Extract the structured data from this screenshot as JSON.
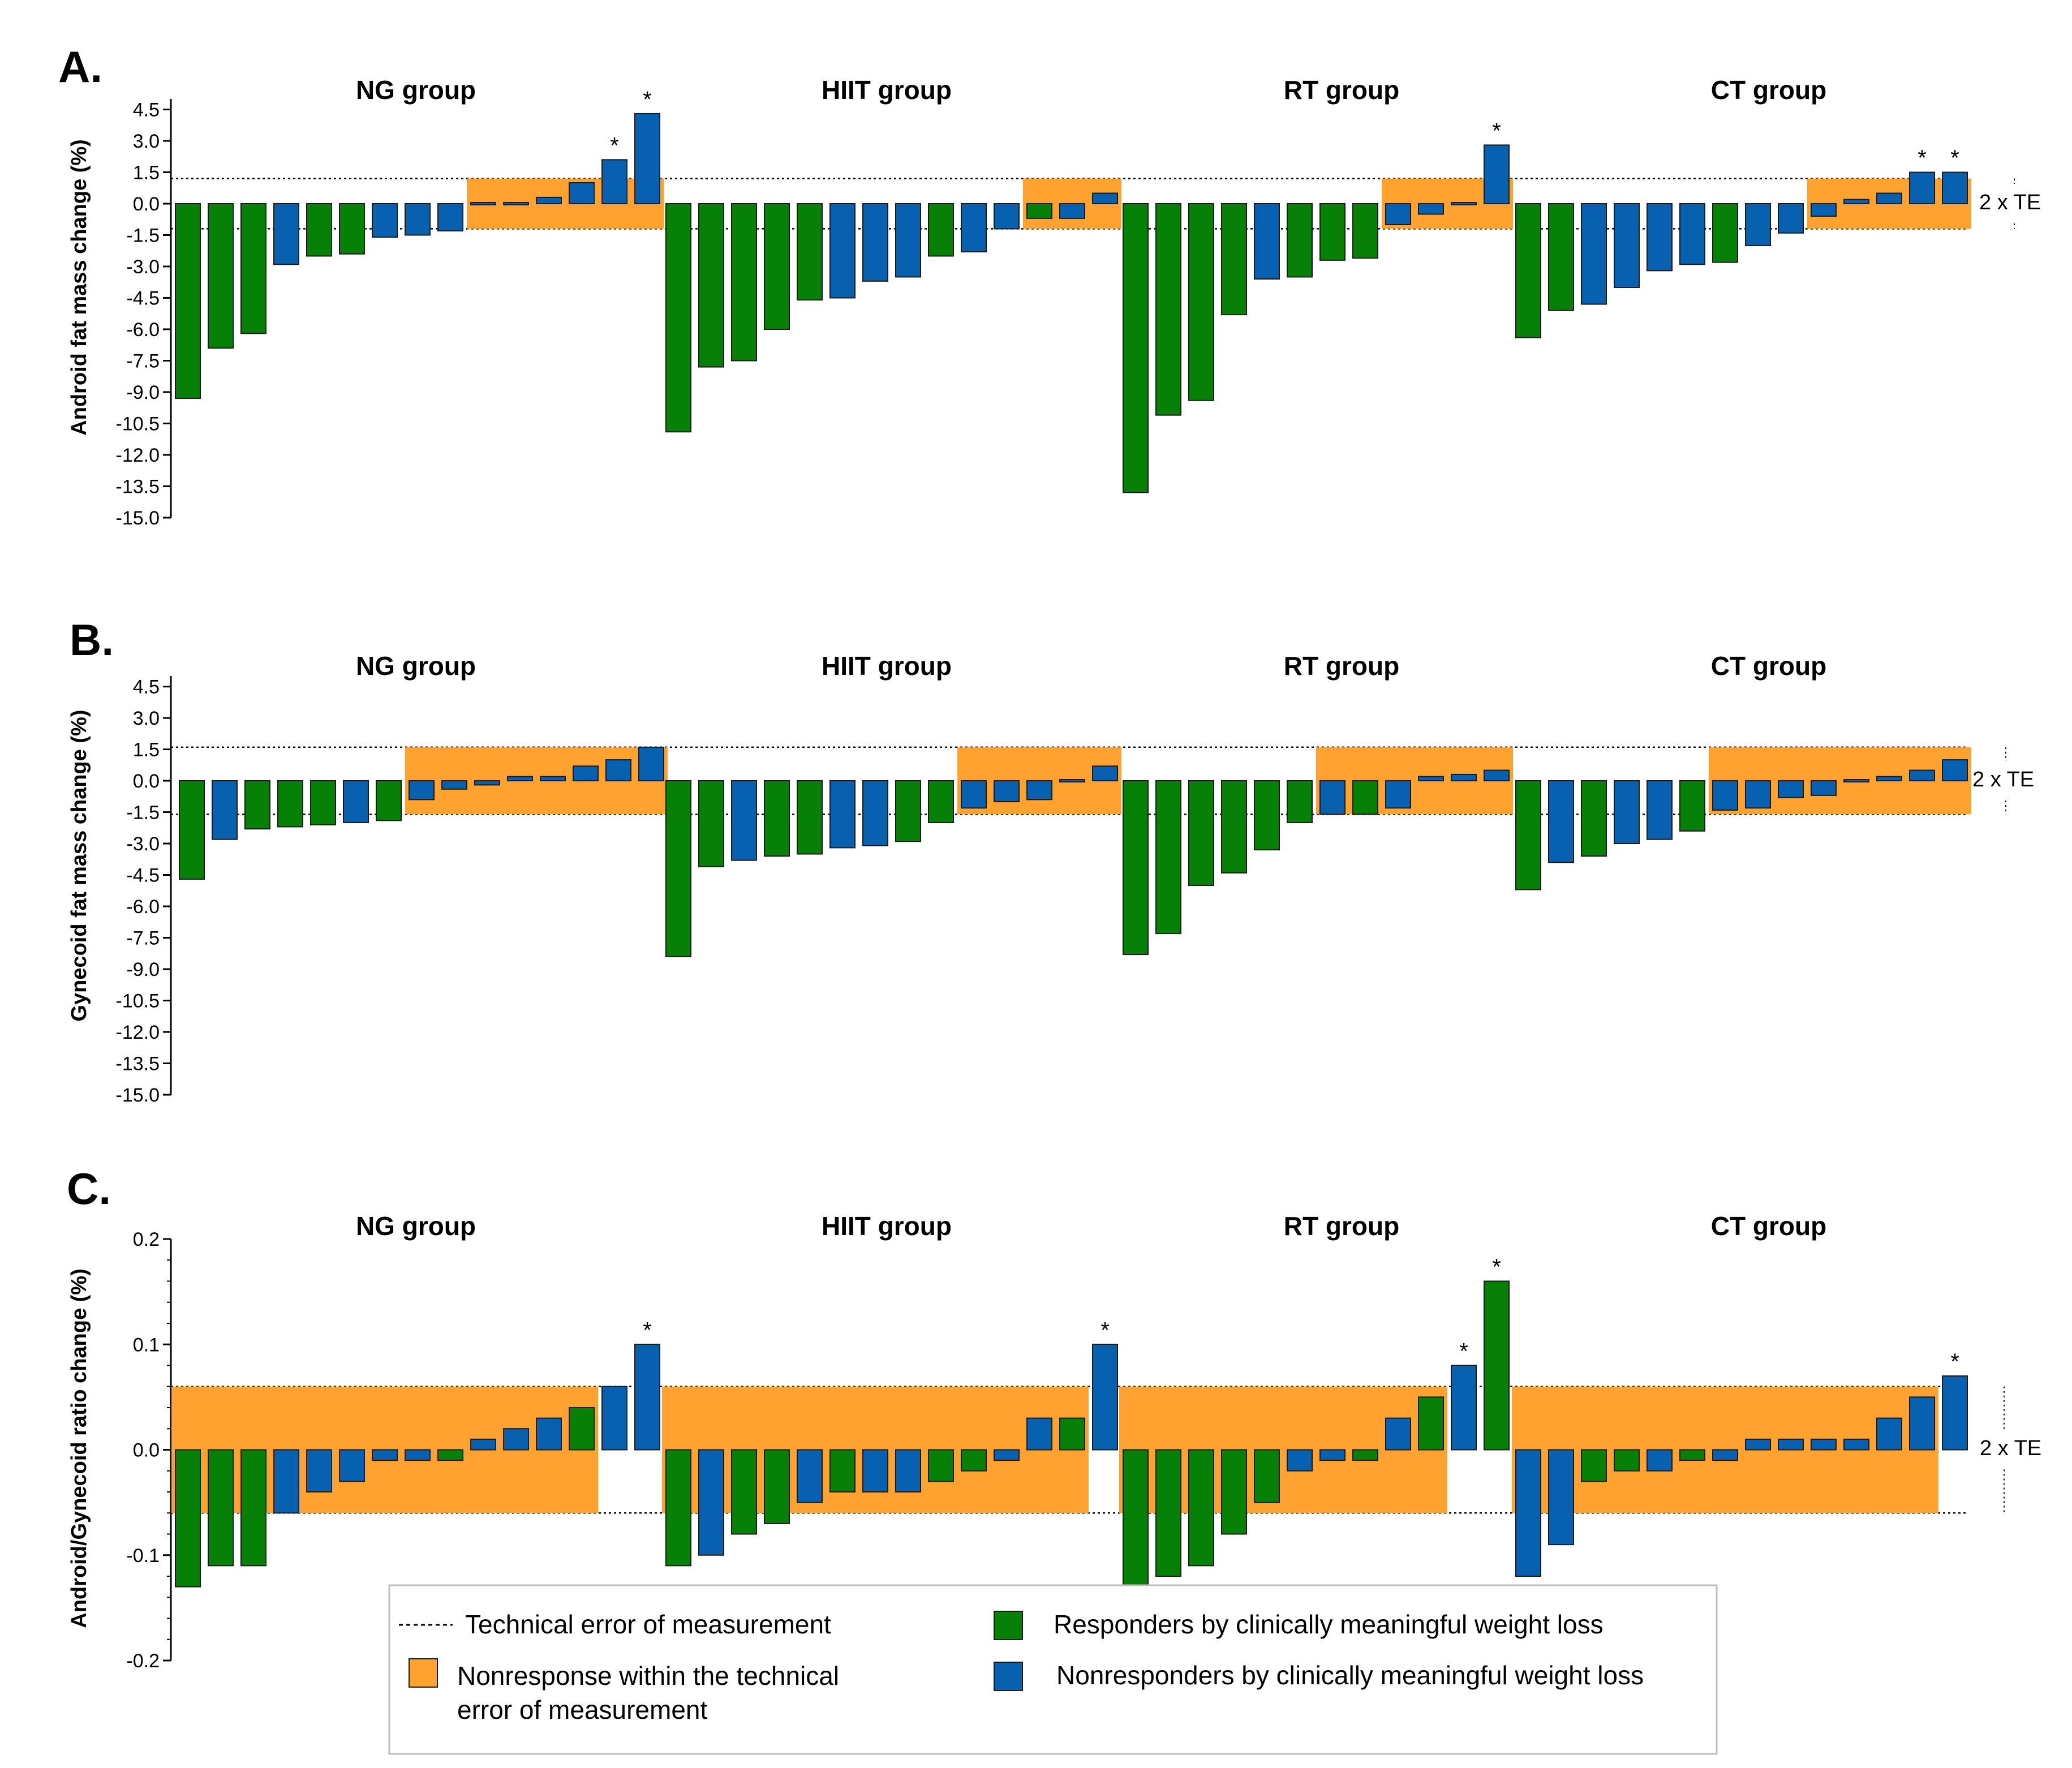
{
  "colors": {
    "responder": "#068006",
    "nonresponder": "#0761B0",
    "nonresponse_band": "#FFA22F",
    "bar_edge": "#1a1a1a",
    "axis": "#000000"
  },
  "legend": {
    "te_line": "Technical error of measurement",
    "nonresponse_line1": "Nonresponse within the technical",
    "nonresponse_line2": "error of measurement",
    "responders": "Responders by clinically meaningful weight loss",
    "nonresponders": "Nonresponders by clinically meaningful weight loss"
  },
  "chart_data": [
    {
      "type": "bar",
      "panel": "A.",
      "ylabel": "Android fat mass change (%)",
      "ylim": [
        -15.0,
        5.0
      ],
      "yticks": [
        "4.5",
        "3.0",
        "1.5",
        "0.0",
        "-1.5",
        "-3.0",
        "-4.5",
        "-6.0",
        "-7.5",
        "-9.0",
        "-10.5",
        "-12.0",
        "-13.5",
        "-15.0"
      ],
      "ytick_values": [
        4.5,
        3.0,
        1.5,
        0.0,
        -1.5,
        -3.0,
        -4.5,
        -6.0,
        -7.5,
        -9.0,
        -10.5,
        -12.0,
        -13.5,
        -15.0
      ],
      "te": 1.2,
      "te_label": "2 x TE",
      "groups": [
        {
          "title": "NG group",
          "values": [
            -9.3,
            -6.9,
            -6.2,
            -2.9,
            -2.5,
            -2.4,
            -1.6,
            -1.5,
            -1.3,
            -0.1,
            0.05,
            0.3,
            1.0,
            2.1,
            4.3
          ],
          "responder": [
            1,
            1,
            1,
            0,
            1,
            1,
            0,
            0,
            0,
            0,
            0,
            0,
            0,
            0,
            0
          ],
          "significant": [
            0,
            0,
            0,
            0,
            0,
            0,
            0,
            0,
            0,
            0,
            0,
            0,
            0,
            1,
            1
          ],
          "band": [
            9,
            14
          ]
        },
        {
          "title": "HIIT group",
          "values": [
            -10.9,
            -7.8,
            -7.5,
            -6.0,
            -4.6,
            -4.5,
            -3.7,
            -3.5,
            -2.5,
            -2.3,
            -1.2,
            -0.7,
            -0.7,
            0.5
          ],
          "responder": [
            1,
            1,
            1,
            1,
            1,
            0,
            0,
            0,
            1,
            0,
            0,
            1,
            0,
            0
          ],
          "significant": [
            0,
            0,
            0,
            0,
            0,
            0,
            0,
            0,
            0,
            0,
            0,
            0,
            0,
            0
          ],
          "band": [
            11,
            13
          ]
        },
        {
          "title": "RT group",
          "values": [
            -13.8,
            -10.1,
            -9.4,
            -5.3,
            -3.6,
            -3.5,
            -2.7,
            -2.6,
            -1.0,
            -0.5,
            0.1,
            2.8
          ],
          "responder": [
            1,
            1,
            1,
            1,
            0,
            1,
            1,
            1,
            0,
            0,
            0,
            0
          ],
          "significant": [
            0,
            0,
            0,
            0,
            0,
            0,
            0,
            0,
            0,
            0,
            0,
            1
          ],
          "band": [
            8,
            11
          ]
        },
        {
          "title": "CT group",
          "values": [
            -6.4,
            -5.1,
            -4.8,
            -4.0,
            -3.2,
            -2.9,
            -2.8,
            -2.0,
            -1.4,
            -0.6,
            0.2,
            0.5,
            1.5,
            1.5
          ],
          "responder": [
            1,
            1,
            0,
            0,
            0,
            0,
            1,
            0,
            0,
            0,
            0,
            0,
            0,
            0
          ],
          "significant": [
            0,
            0,
            0,
            0,
            0,
            0,
            0,
            0,
            0,
            0,
            0,
            0,
            1,
            1
          ],
          "band": [
            9,
            13
          ]
        }
      ]
    },
    {
      "type": "bar",
      "panel": "B.",
      "ylabel": "Gynecoid fat mass change (%)",
      "ylim": [
        -15.0,
        5.0
      ],
      "yticks": [
        "4.5",
        "3.0",
        "1.5",
        "0.0",
        "-1.5",
        "-3.0",
        "-4.5",
        "-6.0",
        "-7.5",
        "-9.0",
        "-10.5",
        "-12.0",
        "-13.5",
        "-15.0"
      ],
      "ytick_values": [
        4.5,
        3.0,
        1.5,
        0.0,
        -1.5,
        -3.0,
        -4.5,
        -6.0,
        -7.5,
        -9.0,
        -10.5,
        -12.0,
        -13.5,
        -15.0
      ],
      "te": 1.6,
      "te_label": "2 x TE",
      "groups": [
        {
          "title": "NG group",
          "values": [
            -4.7,
            -2.8,
            -2.3,
            -2.2,
            -2.1,
            -2.0,
            -1.9,
            -0.9,
            -0.4,
            -0.2,
            0.2,
            0.2,
            0.7,
            1.0,
            1.6
          ],
          "responder": [
            1,
            0,
            1,
            1,
            1,
            0,
            1,
            0,
            0,
            0,
            0,
            0,
            0,
            0,
            0
          ],
          "significant": [
            0,
            0,
            0,
            0,
            0,
            0,
            0,
            0,
            0,
            0,
            0,
            0,
            0,
            0,
            0
          ],
          "band": [
            7,
            14
          ]
        },
        {
          "title": "HIIT group",
          "values": [
            -8.4,
            -4.1,
            -3.8,
            -3.6,
            -3.5,
            -3.2,
            -3.1,
            -2.9,
            -2.0,
            -1.3,
            -1.0,
            -0.9,
            0.1,
            0.7
          ],
          "responder": [
            1,
            1,
            0,
            1,
            1,
            0,
            0,
            1,
            1,
            0,
            0,
            0,
            0,
            0
          ],
          "significant": [
            0,
            0,
            0,
            0,
            0,
            0,
            0,
            0,
            0,
            0,
            0,
            0,
            0,
            0
          ],
          "band": [
            9,
            13
          ]
        },
        {
          "title": "RT group",
          "values": [
            -8.3,
            -7.3,
            -5.0,
            -4.4,
            -3.3,
            -2.0,
            -1.6,
            -1.6,
            -1.3,
            0.2,
            0.3,
            0.5
          ],
          "responder": [
            1,
            1,
            1,
            1,
            1,
            1,
            0,
            1,
            0,
            0,
            0,
            0
          ],
          "significant": [
            0,
            0,
            0,
            0,
            0,
            0,
            0,
            0,
            0,
            0,
            0,
            0
          ],
          "band": [
            6,
            11
          ]
        },
        {
          "title": "CT group",
          "values": [
            -5.2,
            -3.9,
            -3.6,
            -3.0,
            -2.8,
            -2.4,
            -1.4,
            -1.3,
            -0.8,
            -0.7,
            0.05,
            0.2,
            0.5,
            1.0
          ],
          "responder": [
            1,
            0,
            1,
            0,
            0,
            1,
            0,
            0,
            0,
            0,
            0,
            0,
            0,
            0
          ],
          "significant": [
            0,
            0,
            0,
            0,
            0,
            0,
            0,
            0,
            0,
            0,
            0,
            0,
            0,
            0
          ],
          "band": [
            6,
            13
          ]
        }
      ]
    },
    {
      "type": "bar",
      "panel": "C.",
      "ylabel": "Android/Gynecoid ratio change (%)",
      "ylim": [
        -0.2,
        0.2
      ],
      "yticks": [
        "0.2",
        "0.1",
        "0.0",
        "-0.1",
        "-0.2"
      ],
      "ytick_values": [
        0.2,
        0.1,
        0.0,
        -0.1,
        -0.2
      ],
      "minor_step": 0.02,
      "te": 0.06,
      "te_label": "2 x TE",
      "groups": [
        {
          "title": "NG group",
          "values": [
            -0.13,
            -0.11,
            -0.11,
            -0.06,
            -0.04,
            -0.03,
            -0.01,
            -0.01,
            -0.01,
            0.01,
            0.02,
            0.03,
            0.04,
            0.06,
            0.1
          ],
          "responder": [
            1,
            1,
            1,
            0,
            0,
            0,
            0,
            0,
            1,
            0,
            0,
            0,
            1,
            0,
            0
          ],
          "significant": [
            0,
            0,
            0,
            0,
            0,
            0,
            0,
            0,
            0,
            0,
            0,
            0,
            0,
            0,
            1
          ],
          "band": [
            0,
            12
          ]
        },
        {
          "title": "HIIT group",
          "values": [
            -0.11,
            -0.1,
            -0.08,
            -0.07,
            -0.05,
            -0.04,
            -0.04,
            -0.04,
            -0.03,
            -0.02,
            -0.01,
            0.03,
            0.03,
            0.1
          ],
          "responder": [
            1,
            0,
            1,
            1,
            0,
            1,
            0,
            0,
            1,
            1,
            0,
            0,
            1,
            0
          ],
          "significant": [
            0,
            0,
            0,
            0,
            0,
            0,
            0,
            0,
            0,
            0,
            0,
            0,
            0,
            1
          ],
          "band": [
            0,
            12
          ]
        },
        {
          "title": "RT group",
          "values": [
            -0.13,
            -0.12,
            -0.11,
            -0.08,
            -0.05,
            -0.02,
            -0.01,
            -0.01,
            0.03,
            0.05,
            0.08,
            0.16
          ],
          "responder": [
            1,
            1,
            1,
            1,
            1,
            0,
            0,
            1,
            0,
            1,
            0,
            1
          ],
          "significant": [
            0,
            0,
            0,
            0,
            0,
            0,
            0,
            0,
            0,
            0,
            1,
            1
          ],
          "band": [
            0,
            9
          ]
        },
        {
          "title": "CT group",
          "values": [
            -0.12,
            -0.09,
            -0.03,
            -0.02,
            -0.02,
            -0.01,
            -0.01,
            0.01,
            0.01,
            0.01,
            0.01,
            0.03,
            0.05,
            0.07
          ],
          "responder": [
            0,
            0,
            1,
            1,
            0,
            1,
            0,
            0,
            0,
            0,
            0,
            0,
            0,
            0
          ],
          "significant": [
            0,
            0,
            0,
            0,
            0,
            0,
            0,
            0,
            0,
            0,
            0,
            0,
            0,
            1
          ],
          "band": [
            0,
            12
          ]
        }
      ]
    }
  ]
}
